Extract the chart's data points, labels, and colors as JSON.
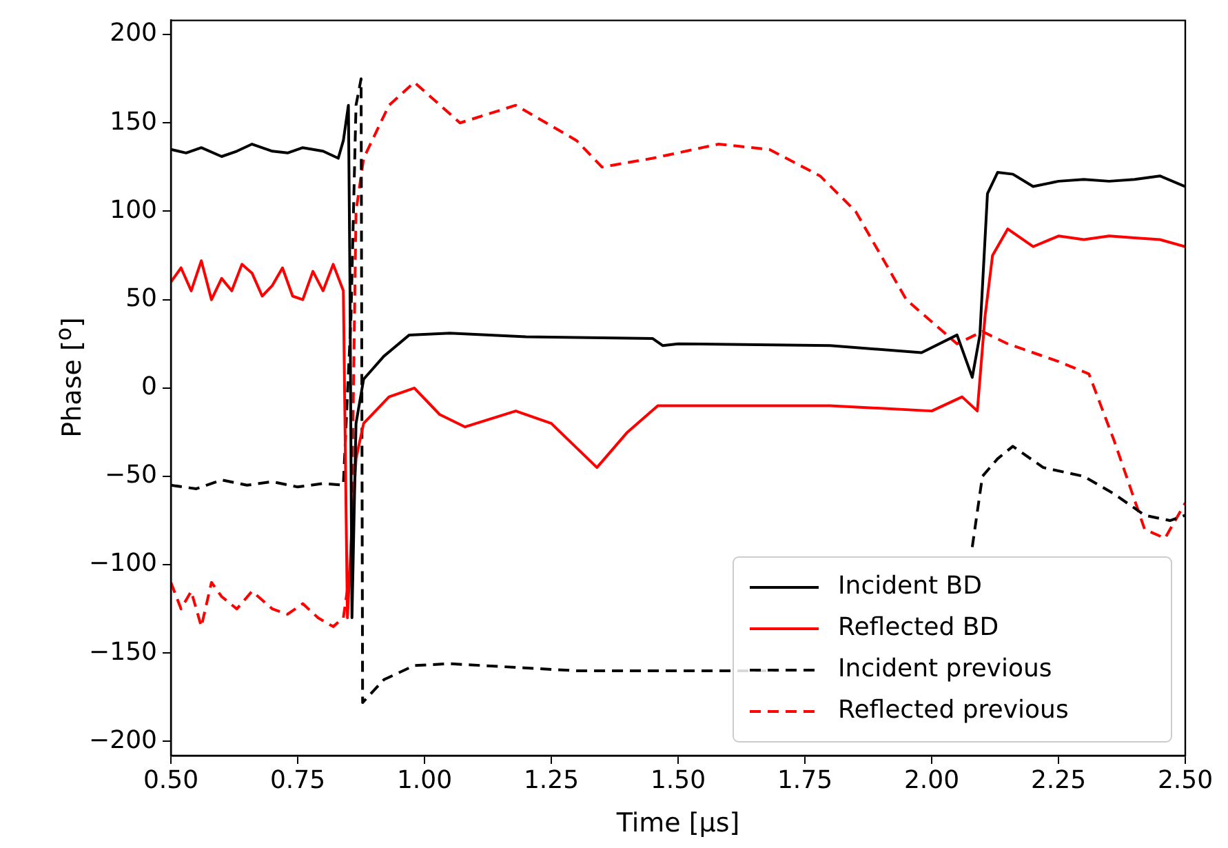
{
  "chart_data": {
    "type": "line",
    "xlabel": "Time [μs]",
    "ylabel": "Phase [$^{o}$]",
    "xlim": [
      0.5,
      2.5
    ],
    "xticks": [
      {
        "value": 0.5,
        "label": "0.50"
      },
      {
        "value": 0.75,
        "label": "0.75"
      },
      {
        "value": 1,
        "label": "1.00"
      },
      {
        "value": 1.25,
        "label": "1.25"
      },
      {
        "value": 1.5,
        "label": "1.50"
      },
      {
        "value": 1.75,
        "label": "1.75"
      },
      {
        "value": 2,
        "label": "2.00"
      },
      {
        "value": 2.25,
        "label": "2.25"
      },
      {
        "value": 2.5,
        "label": "2.50"
      }
    ],
    "ylim": [
      -208,
      208
    ],
    "yticks": [
      -200,
      -150,
      -100,
      -50,
      0,
      50,
      100,
      150,
      200
    ],
    "legend": "bottom right",
    "grid": false,
    "marker": "none",
    "series": [
      {
        "name": "Incident BD",
        "color": "#000000",
        "line_style": "solid",
        "x": [
          0.5,
          0.53,
          0.56,
          0.6,
          0.63,
          0.66,
          0.7,
          0.73,
          0.76,
          0.8,
          0.83,
          0.84,
          0.85,
          0.853,
          0.857,
          0.865,
          0.88,
          0.92,
          0.97,
          1.05,
          1.2,
          1.45,
          1.47,
          1.5,
          1.8,
          1.98,
          2.05,
          2.08,
          2.095,
          2.11,
          2.13,
          2.16,
          2.2,
          2.25,
          2.3,
          2.35,
          2.4,
          2.45,
          2.5
        ],
        "values": [
          135,
          133,
          136,
          131,
          134,
          138,
          134,
          133,
          136,
          134,
          130,
          140,
          160,
          60,
          -130,
          -20,
          5,
          18,
          30,
          31,
          29,
          28,
          24,
          25,
          24,
          20,
          30,
          6,
          30,
          110,
          122,
          121,
          114,
          117,
          118,
          117,
          118,
          120,
          114
        ]
      },
      {
        "name": "Reflected BD",
        "color": "#ff0000",
        "line_style": "solid",
        "x": [
          0.5,
          0.52,
          0.54,
          0.56,
          0.58,
          0.6,
          0.62,
          0.64,
          0.66,
          0.68,
          0.7,
          0.72,
          0.74,
          0.76,
          0.78,
          0.8,
          0.82,
          0.84,
          0.848,
          0.855,
          0.865,
          0.88,
          0.93,
          0.98,
          1.03,
          1.08,
          1.18,
          1.25,
          1.34,
          1.4,
          1.46,
          1.8,
          2.0,
          2.06,
          2.09,
          2.105,
          2.12,
          2.15,
          2.2,
          2.25,
          2.3,
          2.35,
          2.4,
          2.45,
          2.5
        ],
        "values": [
          60,
          68,
          55,
          72,
          50,
          62,
          55,
          70,
          65,
          52,
          58,
          68,
          52,
          50,
          66,
          55,
          70,
          55,
          -130,
          -90,
          -40,
          -20,
          -5,
          0,
          -15,
          -22,
          -13,
          -20,
          -45,
          -25,
          -10,
          -10,
          -13,
          -5,
          -13,
          40,
          75,
          90,
          80,
          86,
          84,
          86,
          85,
          84,
          80
        ]
      },
      {
        "name": "Incident previous",
        "color": "#000000",
        "line_style": "dashed",
        "x": [
          0.5,
          0.55,
          0.6,
          0.65,
          0.7,
          0.75,
          0.8,
          0.84,
          0.855,
          0.865,
          0.875,
          0.878,
          0.92,
          0.98,
          1.05,
          1.3,
          1.7,
          2.0,
          2.05,
          2.08,
          2.1,
          2.13,
          2.16,
          2.22,
          2.3,
          2.36,
          2.42,
          2.47,
          2.5
        ],
        "values": [
          -55,
          -57,
          -52,
          -55,
          -53,
          -56,
          -54,
          -55,
          40,
          160,
          175,
          -178,
          -165,
          -157,
          -156,
          -160,
          -160,
          null,
          null,
          -90,
          -50,
          -40,
          -33,
          -45,
          -50,
          -60,
          -72,
          -75,
          -72
        ]
      },
      {
        "name": "Reflected previous",
        "color": "#ff0000",
        "line_style": "dashed",
        "x": [
          0.5,
          0.52,
          0.54,
          0.56,
          0.58,
          0.6,
          0.63,
          0.66,
          0.7,
          0.73,
          0.76,
          0.79,
          0.82,
          0.84,
          0.855,
          0.865,
          0.88,
          0.93,
          0.98,
          1.07,
          1.18,
          1.3,
          1.35,
          1.45,
          1.58,
          1.68,
          1.78,
          1.85,
          1.95,
          2.05,
          2.1,
          2.15,
          2.25,
          2.31,
          2.36,
          2.42,
          2.46,
          2.5
        ],
        "values": [
          -110,
          -125,
          -115,
          -135,
          -110,
          -118,
          -125,
          -115,
          -125,
          -128,
          -122,
          -130,
          -135,
          -130,
          -100,
          100,
          130,
          160,
          173,
          150,
          160,
          140,
          125,
          130,
          138,
          135,
          120,
          100,
          50,
          25,
          32,
          25,
          15,
          8,
          -30,
          -80,
          -85,
          -65
        ]
      }
    ]
  }
}
